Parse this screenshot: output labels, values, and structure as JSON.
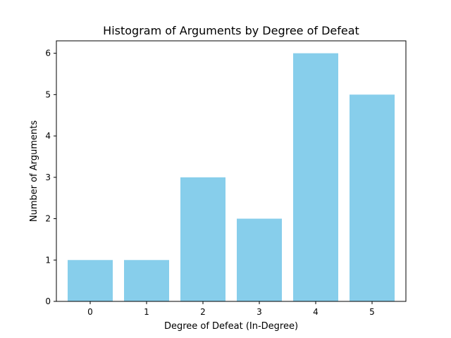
{
  "chart_data": {
    "type": "bar",
    "title": "Histogram of Arguments by Degree of Defeat",
    "xlabel": "Degree of Defeat (In-Degree)",
    "ylabel": "Number of Arguments",
    "categories": [
      "0",
      "1",
      "2",
      "3",
      "4",
      "5"
    ],
    "values": [
      1,
      1,
      3,
      2,
      6,
      5
    ],
    "xlim": [
      -0.6,
      5.6
    ],
    "ylim": [
      0,
      6.3
    ],
    "yticks": [
      "0",
      "1",
      "2",
      "3",
      "4",
      "5",
      "6"
    ],
    "bar_color": "#87ceeb",
    "grid": false
  }
}
